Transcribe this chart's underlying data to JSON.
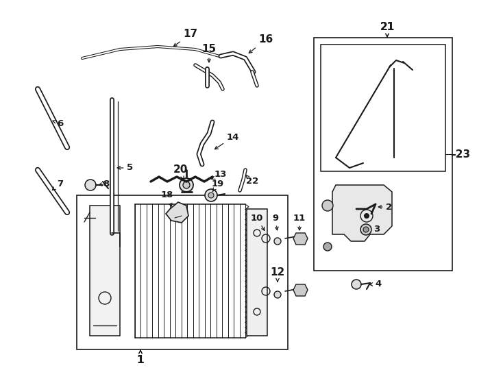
{
  "fig_width": 7.34,
  "fig_height": 5.4,
  "dpi": 100,
  "bg": "#ffffff",
  "lc": "#1a1a1a",
  "fs": 9.5,
  "fs_lg": 11
}
